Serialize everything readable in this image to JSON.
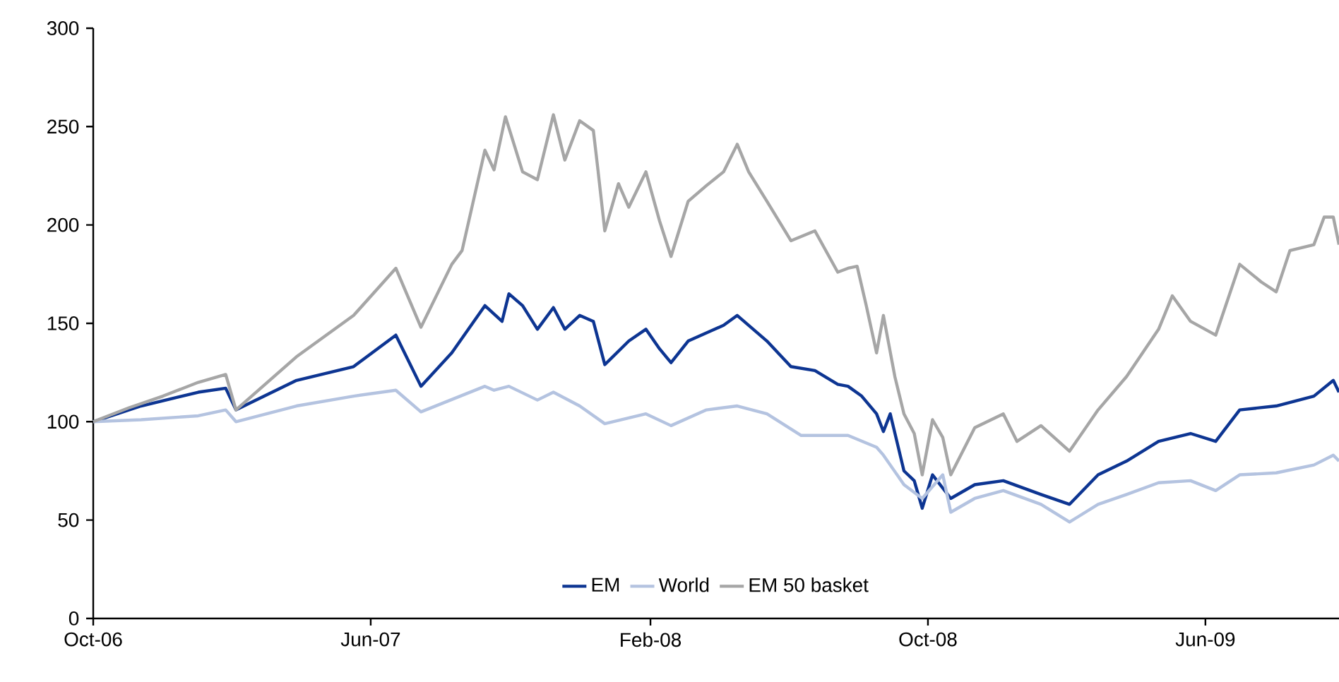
{
  "chart_data": {
    "type": "line",
    "xlim": [
      "2006-10-01",
      "2009-09-26"
    ],
    "xticks": [
      {
        "value": "2006-10-01",
        "label": "Oct-06"
      },
      {
        "value": "2007-06-01",
        "label": "Jun-07"
      },
      {
        "value": "2008-02-01",
        "label": "Feb-08"
      },
      {
        "value": "2008-10-01",
        "label": "Oct-08"
      },
      {
        "value": "2009-06-01",
        "label": "Jun-09"
      }
    ],
    "ylim": [
      0,
      300
    ],
    "yticks": [
      0,
      50,
      100,
      150,
      200,
      250,
      300
    ],
    "grid": false,
    "legend": "bottom",
    "marker": "none",
    "line_style": "solid",
    "series": [
      {
        "name": "EM",
        "color": "#0d3592",
        "x": [
          "2006-10-01",
          "2006-11-12",
          "2007-01-01",
          "2007-01-25",
          "2007-02-03",
          "2007-03-28",
          "2007-05-17",
          "2007-06-23",
          "2007-07-15",
          "2007-08-11",
          "2007-09-09",
          "2007-09-24",
          "2007-09-30",
          "2007-10-12",
          "2007-10-25",
          "2007-11-08",
          "2007-11-18",
          "2007-12-01",
          "2007-12-13",
          "2007-12-23",
          "2008-01-13",
          "2008-01-28",
          "2008-02-09",
          "2008-02-19",
          "2008-03-05",
          "2008-04-05",
          "2008-04-17",
          "2008-05-13",
          "2008-06-03",
          "2008-06-24",
          "2008-07-14",
          "2008-07-23",
          "2008-08-04",
          "2008-08-17",
          "2008-08-23",
          "2008-08-29",
          "2008-09-10",
          "2008-09-19",
          "2008-09-26",
          "2008-10-05",
          "2008-10-21",
          "2008-11-11",
          "2008-12-06",
          "2009-01-08",
          "2009-02-02",
          "2009-02-27",
          "2009-03-24",
          "2009-04-21",
          "2009-05-19",
          "2009-06-10",
          "2009-07-01",
          "2009-08-02",
          "2009-09-04",
          "2009-09-21",
          "2009-09-26"
        ],
        "values": [
          100,
          108,
          115,
          117,
          106,
          121,
          128,
          144,
          118,
          135,
          159,
          151,
          165,
          159,
          147,
          158,
          147,
          154,
          151,
          129,
          141,
          147,
          137,
          130,
          141,
          149,
          154,
          141,
          128,
          126,
          119,
          118,
          113,
          104,
          95,
          104,
          75,
          70,
          56,
          73,
          61,
          68,
          70,
          63,
          58,
          73,
          80,
          90,
          94,
          90,
          106,
          108,
          113,
          121,
          115
        ]
      },
      {
        "name": "World",
        "color": "#b4c3e0",
        "x": [
          "2006-10-01",
          "2006-11-12",
          "2007-01-01",
          "2007-01-25",
          "2007-02-03",
          "2007-03-28",
          "2007-05-17",
          "2007-06-23",
          "2007-07-15",
          "2007-09-09",
          "2007-09-17",
          "2007-09-30",
          "2007-10-25",
          "2007-11-08",
          "2007-12-01",
          "2007-12-23",
          "2008-01-28",
          "2008-02-19",
          "2008-03-21",
          "2008-04-17",
          "2008-05-13",
          "2008-06-12",
          "2008-07-23",
          "2008-08-17",
          "2008-08-23",
          "2008-09-10",
          "2008-09-26",
          "2008-10-14",
          "2008-10-21",
          "2008-11-11",
          "2008-12-06",
          "2009-01-08",
          "2009-02-02",
          "2009-02-27",
          "2009-03-24",
          "2009-04-21",
          "2009-05-19",
          "2009-06-10",
          "2009-07-01",
          "2009-08-02",
          "2009-09-04",
          "2009-09-21",
          "2009-09-26"
        ],
        "values": [
          100,
          101,
          103,
          106,
          100,
          108,
          113,
          116,
          105,
          118,
          116,
          118,
          111,
          115,
          108,
          99,
          104,
          98,
          106,
          108,
          104,
          93,
          93,
          87,
          83,
          68,
          61,
          73,
          54,
          61,
          65,
          58,
          49,
          58,
          63,
          69,
          70,
          65,
          73,
          74,
          78,
          83,
          80
        ]
      },
      {
        "name": "EM 50 basket",
        "color": "#a6a6a6",
        "x": [
          "2006-10-01",
          "2006-11-01",
          "2006-12-01",
          "2007-01-01",
          "2007-01-25",
          "2007-02-03",
          "2007-03-28",
          "2007-05-17",
          "2007-06-23",
          "2007-07-15",
          "2007-08-11",
          "2007-08-20",
          "2007-09-09",
          "2007-09-17",
          "2007-09-27",
          "2007-10-12",
          "2007-10-25",
          "2007-11-08",
          "2007-11-18",
          "2007-12-01",
          "2007-12-13",
          "2007-12-17",
          "2007-12-23",
          "2008-01-04",
          "2008-01-13",
          "2008-01-28",
          "2008-02-09",
          "2008-02-19",
          "2008-03-05",
          "2008-03-21",
          "2008-04-05",
          "2008-04-17",
          "2008-04-27",
          "2008-05-13",
          "2008-06-03",
          "2008-06-24",
          "2008-07-14",
          "2008-07-23",
          "2008-07-31",
          "2008-08-08",
          "2008-08-17",
          "2008-08-23",
          "2008-09-02",
          "2008-09-10",
          "2008-09-19",
          "2008-09-26",
          "2008-10-05",
          "2008-10-14",
          "2008-10-21",
          "2008-11-11",
          "2008-12-06",
          "2008-12-18",
          "2009-01-08",
          "2009-02-02",
          "2009-02-27",
          "2009-03-24",
          "2009-04-21",
          "2009-05-03",
          "2009-05-19",
          "2009-06-10",
          "2009-07-01",
          "2009-07-20",
          "2009-08-02",
          "2009-08-14",
          "2009-09-04",
          "2009-09-13",
          "2009-09-21",
          "2009-09-26"
        ],
        "values": [
          100,
          107,
          113,
          120,
          124,
          106,
          133,
          154,
          178,
          148,
          180,
          187,
          238,
          228,
          255,
          227,
          223,
          256,
          233,
          253,
          248,
          228,
          197,
          221,
          209,
          227,
          202,
          184,
          212,
          220,
          227,
          241,
          227,
          212,
          192,
          197,
          176,
          178,
          179,
          159,
          135,
          154,
          123,
          104,
          94,
          73,
          101,
          92,
          73,
          97,
          104,
          90,
          98,
          85,
          106,
          123,
          147,
          164,
          151,
          144,
          180,
          171,
          166,
          187,
          190,
          204,
          204,
          190
        ]
      }
    ]
  }
}
